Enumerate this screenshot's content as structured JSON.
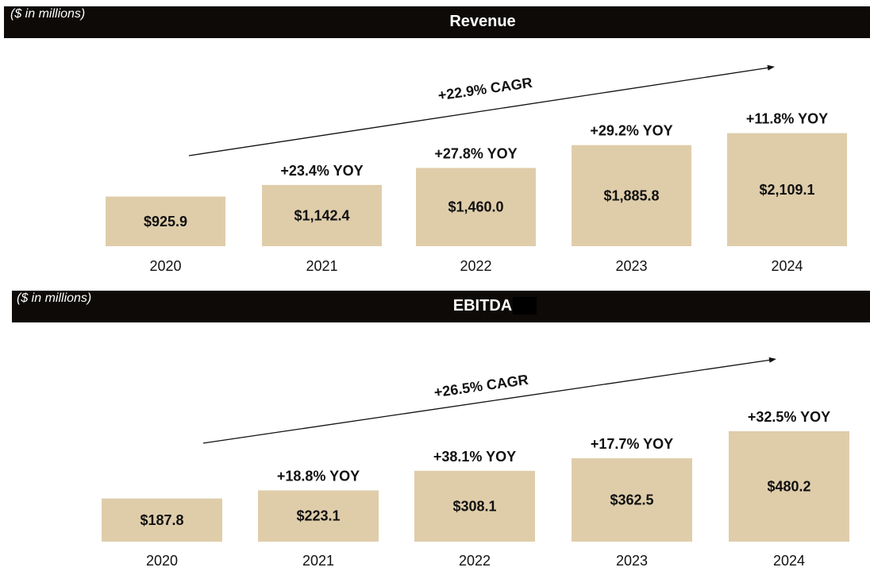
{
  "chart_data": [
    {
      "type": "bar",
      "title": "Revenue",
      "units_note": "($ in millions)",
      "categories": [
        "2020",
        "2021",
        "2022",
        "2023",
        "2024"
      ],
      "values": [
        925.9,
        1142.4,
        1460.0,
        1885.8,
        2109.1
      ],
      "value_labels": [
        "$925.9",
        "$1,142.4",
        "$1,460.0",
        "$1,885.8",
        "$2,109.1"
      ],
      "yoy_labels": [
        "",
        "+23.4% YOY",
        "+27.8% YOY",
        "+29.2% YOY",
        "+11.8% YOY"
      ],
      "cagr_label": "+22.9% CAGR",
      "xlabel": "",
      "ylabel": "",
      "grid": false
    },
    {
      "type": "bar",
      "title": "EBITDA",
      "units_note": "($ in millions)",
      "categories": [
        "2020",
        "2021",
        "2022",
        "2023",
        "2024"
      ],
      "values": [
        187.8,
        223.1,
        308.1,
        362.5,
        480.2
      ],
      "value_labels": [
        "$187.8",
        "$223.1",
        "$308.1",
        "$362.5",
        "$480.2"
      ],
      "yoy_labels": [
        "",
        "+18.8% YOY",
        "+38.1% YOY",
        "+17.7% YOY",
        "+32.5% YOY"
      ],
      "cagr_label": "+26.5% CAGR",
      "xlabel": "",
      "ylabel": "",
      "grid": false
    }
  ],
  "colors": {
    "header_bg": "#0d0a07",
    "bar_fill": "#dfcdaa",
    "text": "#111111"
  }
}
